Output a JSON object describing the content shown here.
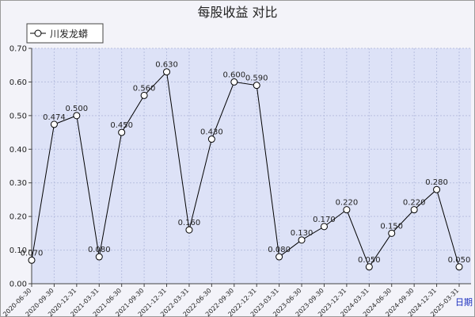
{
  "chart_data": {
    "type": "line",
    "title": "每股收益  对比",
    "xlabel": "日期",
    "ylabel": "",
    "ylim": [
      0,
      0.7
    ],
    "yticks": [
      "0.00",
      "0.10",
      "0.20",
      "0.30",
      "0.40",
      "0.50",
      "0.60",
      "0.70"
    ],
    "grid": true,
    "legend_position": "top-left",
    "categories": [
      "2020-06-30",
      "2020-09-30",
      "2020-12-31",
      "2021-03-31",
      "2021-06-30",
      "2021-09-30",
      "2021-12-31",
      "2022-03-31",
      "2022-06-30",
      "2022-09-30",
      "2022-12-31",
      "2023-03-31",
      "2023-06-30",
      "2023-09-30",
      "2023-12-31",
      "2024-03-31",
      "2024-06-30",
      "2024-09-30",
      "2024-12-31",
      "2025-03-31"
    ],
    "series": [
      {
        "name": "川发龙蟒",
        "values": [
          0.07,
          0.474,
          0.5,
          0.08,
          0.45,
          0.56,
          0.63,
          0.16,
          0.43,
          0.6,
          0.59,
          0.08,
          0.13,
          0.17,
          0.22,
          0.05,
          0.15,
          0.22,
          0.28,
          0.05
        ],
        "labels": [
          "0.070",
          "0.474",
          "0.500",
          "0.080",
          "0.450",
          "0.560",
          "0.630",
          "0.160",
          "0.430",
          "0.600",
          "0.590",
          "0.080",
          "0.130",
          "0.170",
          "0.220",
          "0.050",
          "0.150",
          "0.220",
          "0.280",
          "0.050"
        ]
      }
    ]
  },
  "colors": {
    "plot_background": "#dde2f7",
    "frame_background": "#f3f3f9",
    "line": "#000000",
    "axis_unit_label": "#1b2fbf"
  }
}
